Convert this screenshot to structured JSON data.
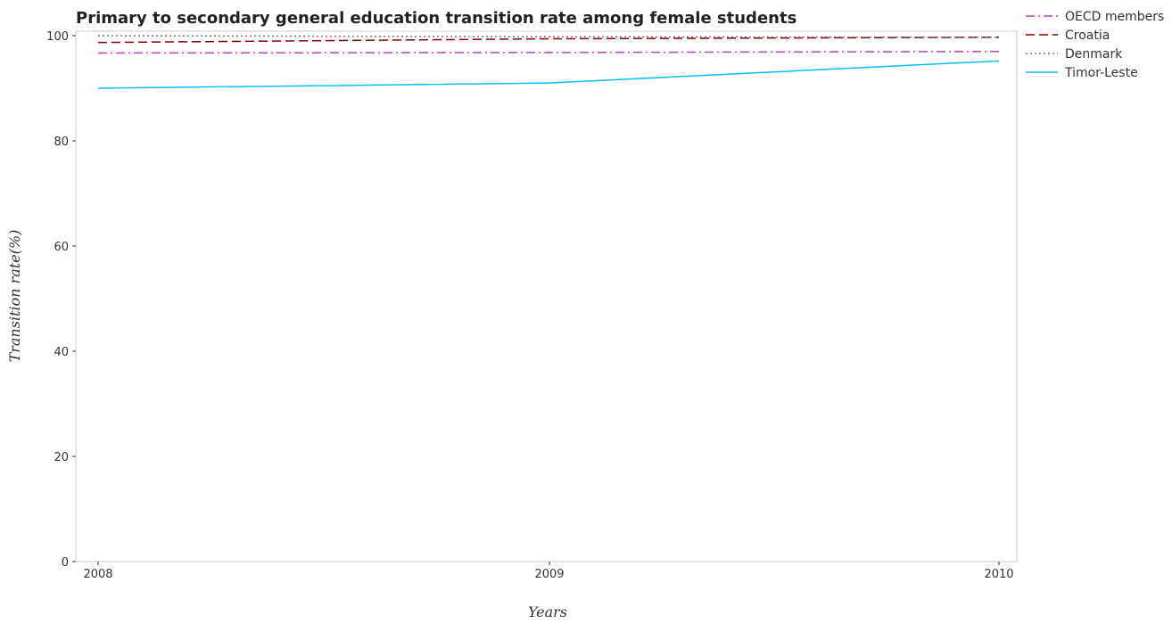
{
  "chart_data": {
    "type": "line",
    "title": "Primary to secondary general education transition rate among female students",
    "xlabel": "Years",
    "ylabel": "Transition rate(%)",
    "x": [
      "2008",
      "2009",
      "2010"
    ],
    "ylim": [
      0,
      100
    ],
    "yticks": [
      "0",
      "20",
      "40",
      "60",
      "80",
      "100"
    ],
    "grid": false,
    "legend_position": "top-right",
    "series": [
      {
        "name": "OECD members",
        "values": [
          96.7,
          96.8,
          97.0
        ],
        "color": "#c03fc0",
        "dash": "dash-dot"
      },
      {
        "name": "Croatia",
        "values": [
          98.7,
          99.4,
          99.7
        ],
        "color": "#8b0000",
        "dash": "dashed"
      },
      {
        "name": "Denmark",
        "values": [
          100.0,
          99.8,
          99.7
        ],
        "color": "#777777",
        "dash": "dotted"
      },
      {
        "name": "Timor-Leste",
        "values": [
          90.0,
          91.0,
          95.2
        ],
        "color": "#00bfff",
        "dash": "solid"
      }
    ]
  }
}
